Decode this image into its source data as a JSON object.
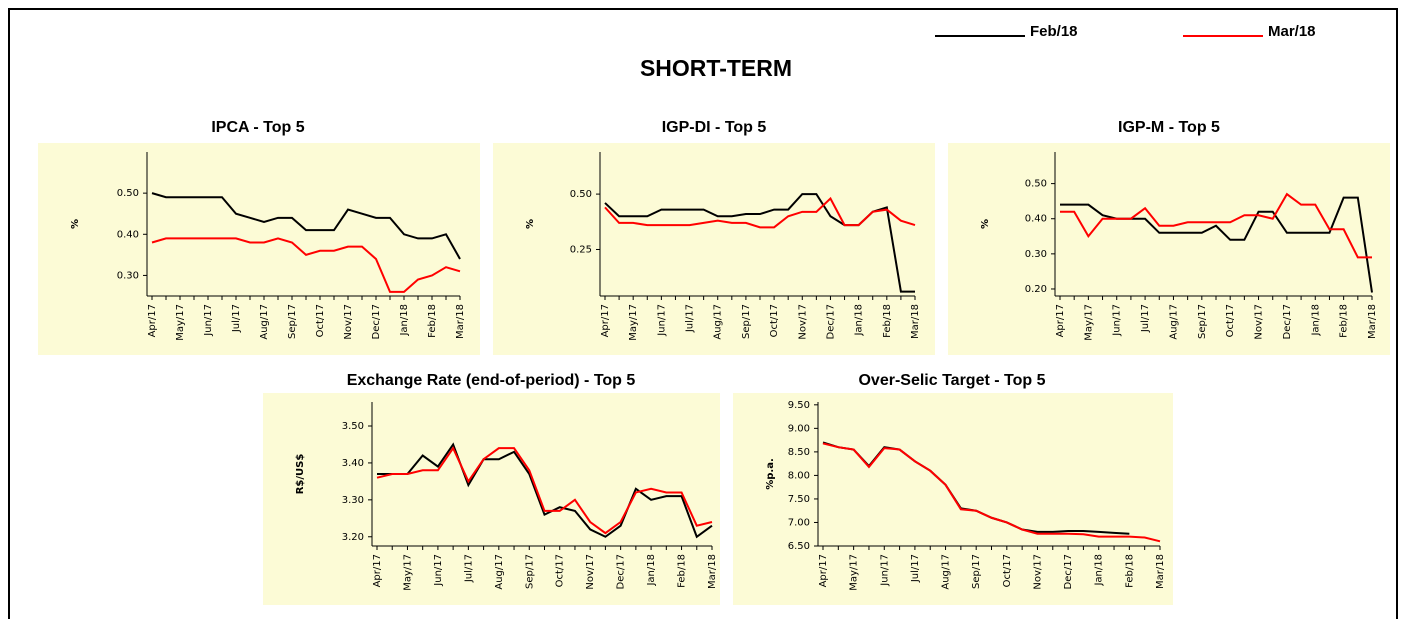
{
  "title": "SHORT-TERM",
  "legend": [
    {
      "name": "Feb/18",
      "color": "#000000"
    },
    {
      "name": "Mar/18",
      "color": "#ff0000"
    }
  ],
  "chart_data": [
    {
      "type": "line",
      "title": "IPCA - Top 5",
      "ylabel": "%",
      "categories": [
        "Apr/17",
        null,
        "May/17",
        null,
        "Jun/17",
        null,
        "Jul/17",
        null,
        "Aug/17",
        null,
        "Sep/17",
        null,
        "Oct/17",
        null,
        "Nov/17",
        null,
        "Dec/17",
        null,
        "Jan/18",
        null,
        "Feb/18",
        null,
        "Mar/18"
      ],
      "series": [
        {
          "color": "#000000",
          "values": [
            0.5,
            0.49,
            0.49,
            0.49,
            0.49,
            0.49,
            0.45,
            0.44,
            0.43,
            0.44,
            0.44,
            0.41,
            0.41,
            0.41,
            0.46,
            0.45,
            0.44,
            0.44,
            0.4,
            0.39,
            0.39,
            0.4,
            0.34
          ]
        },
        {
          "color": "#ff0000",
          "values": [
            0.38,
            0.39,
            0.39,
            0.39,
            0.39,
            0.39,
            0.39,
            0.38,
            0.38,
            0.39,
            0.38,
            0.35,
            0.36,
            0.36,
            0.37,
            0.37,
            0.34,
            0.26,
            0.26,
            0.29,
            0.3,
            0.32,
            0.31
          ]
        }
      ],
      "ylim": [
        0.25,
        0.6
      ],
      "yticks": [
        {
          "value": 0.3,
          "label": "0.30"
        },
        {
          "value": 0.4,
          "label": "0.40"
        },
        {
          "value": 0.5,
          "label": "0.50"
        }
      ]
    },
    {
      "type": "line",
      "title": "IGP-DI - Top 5",
      "ylabel": "%",
      "categories": [
        "Apr/17",
        null,
        "May/17",
        null,
        "Jun/17",
        null,
        "Jul/17",
        null,
        "Aug/17",
        null,
        "Sep/17",
        null,
        "Oct/17",
        null,
        "Nov/17",
        null,
        "Dec/17",
        null,
        "Jan/18",
        null,
        "Feb/18",
        null,
        "Mar/18"
      ],
      "series": [
        {
          "color": "#000000",
          "values": [
            0.46,
            0.4,
            0.4,
            0.4,
            0.43,
            0.43,
            0.43,
            0.43,
            0.4,
            0.4,
            0.41,
            0.41,
            0.43,
            0.43,
            0.5,
            0.5,
            0.4,
            0.36,
            0.36,
            0.42,
            0.44,
            0.06,
            0.06
          ]
        },
        {
          "color": "#ff0000",
          "values": [
            0.44,
            0.37,
            0.37,
            0.36,
            0.36,
            0.36,
            0.36,
            0.37,
            0.38,
            0.37,
            0.37,
            0.35,
            0.35,
            0.4,
            0.42,
            0.42,
            0.48,
            0.36,
            0.36,
            0.42,
            0.43,
            0.38,
            0.36
          ]
        }
      ],
      "ylim": [
        0.04,
        0.69
      ],
      "yticks": [
        0.25,
        {
          "value": 0.5,
          "label": "0.50"
        }
      ]
    },
    {
      "type": "line",
      "title": "IGP-M - Top 5",
      "ylabel": "%",
      "categories": [
        "Apr/17",
        null,
        "May/17",
        null,
        "Jun/17",
        null,
        "Jul/17",
        null,
        "Aug/17",
        null,
        "Sep/17",
        null,
        "Oct/17",
        null,
        "Nov/17",
        null,
        "Dec/17",
        null,
        "Jan/18",
        null,
        "Feb/18",
        null,
        "Mar/18"
      ],
      "series": [
        {
          "color": "#000000",
          "values": [
            0.44,
            0.44,
            0.44,
            0.41,
            0.4,
            0.4,
            0.4,
            0.36,
            0.36,
            0.36,
            0.36,
            0.38,
            0.34,
            0.34,
            0.42,
            0.42,
            0.36,
            0.36,
            0.36,
            0.36,
            0.46,
            0.46,
            0.19
          ]
        },
        {
          "color": "#ff0000",
          "values": [
            0.42,
            0.42,
            0.35,
            0.4,
            0.4,
            0.4,
            0.43,
            0.38,
            0.38,
            0.39,
            0.39,
            0.39,
            0.39,
            0.41,
            0.41,
            0.4,
            0.47,
            0.44,
            0.44,
            0.37,
            0.37,
            0.29,
            0.29
          ]
        }
      ],
      "ylim": [
        0.18,
        0.59
      ],
      "yticks": [
        {
          "value": 0.2,
          "label": "0.20"
        },
        {
          "value": 0.3,
          "label": "0.30"
        },
        {
          "value": 0.4,
          "label": "0.40"
        },
        {
          "value": 0.5,
          "label": "0.50"
        }
      ]
    },
    {
      "type": "line",
      "title": "Exchange Rate (end-of-period) - Top 5",
      "ylabel": "R$/US$",
      "categories": [
        "Apr/17",
        null,
        "May/17",
        null,
        "Jun/17",
        null,
        "Jul/17",
        null,
        "Aug/17",
        null,
        "Sep/17",
        null,
        "Oct/17",
        null,
        "Nov/17",
        null,
        "Dec/17",
        null,
        "Jan/18",
        null,
        "Feb/18",
        null,
        "Mar/18"
      ],
      "series": [
        {
          "color": "#000000",
          "values": [
            3.37,
            3.37,
            3.37,
            3.42,
            3.39,
            3.45,
            3.34,
            3.41,
            3.41,
            3.43,
            3.37,
            3.26,
            3.28,
            3.27,
            3.22,
            3.2,
            3.23,
            3.33,
            3.3,
            3.31,
            3.31,
            3.2,
            3.23
          ]
        },
        {
          "color": "#ff0000",
          "values": [
            3.36,
            3.37,
            3.37,
            3.38,
            3.38,
            3.44,
            3.35,
            3.41,
            3.44,
            3.44,
            3.38,
            3.27,
            3.27,
            3.3,
            3.24,
            3.21,
            3.24,
            3.32,
            3.33,
            3.32,
            3.32,
            3.23,
            3.24
          ]
        }
      ],
      "ylim": [
        3.175,
        3.565
      ],
      "yticks": [
        {
          "value": 3.2,
          "label": "3.20"
        },
        {
          "value": 3.3,
          "label": "3.30"
        },
        {
          "value": 3.4,
          "label": "3.40"
        },
        {
          "value": 3.5,
          "label": "3.50"
        }
      ]
    },
    {
      "type": "line",
      "title": "Over-Selic Target - Top 5",
      "ylabel": "%p.a.",
      "categories": [
        "Apr/17",
        null,
        "May/17",
        null,
        "Jun/17",
        null,
        "Jul/17",
        null,
        "Aug/17",
        null,
        "Sep/17",
        null,
        "Oct/17",
        null,
        "Nov/17",
        null,
        "Dec/17",
        null,
        "Jan/18",
        null,
        "Feb/18",
        null,
        "Mar/18"
      ],
      "series": [
        {
          "color": "#000000",
          "values": [
            8.7,
            8.6,
            8.55,
            8.2,
            8.6,
            8.55,
            8.3,
            8.1,
            7.8,
            7.3,
            7.25,
            7.1,
            7.0,
            6.85,
            6.8,
            6.8,
            6.82,
            6.82,
            6.8,
            6.78,
            6.76,
            null,
            null
          ]
        },
        {
          "color": "#ff0000",
          "values": [
            8.68,
            8.6,
            8.55,
            8.18,
            8.58,
            8.55,
            8.3,
            8.1,
            7.8,
            7.28,
            7.25,
            7.1,
            7.0,
            6.85,
            6.76,
            6.76,
            6.76,
            6.75,
            6.7,
            6.7,
            6.7,
            6.68,
            6.6
          ]
        }
      ],
      "ylim": [
        6.5,
        9.56
      ],
      "yticks": [
        {
          "value": 6.5,
          "label": "6.50"
        },
        {
          "value": 7,
          "label": "7.00"
        },
        {
          "value": 7.5,
          "label": "7.50"
        },
        {
          "value": 8,
          "label": "8.00"
        },
        {
          "value": 8.5,
          "label": "8.50"
        },
        {
          "value": 9,
          "label": "9.00"
        },
        {
          "value": 9.5,
          "label": "9.50"
        }
      ]
    }
  ]
}
